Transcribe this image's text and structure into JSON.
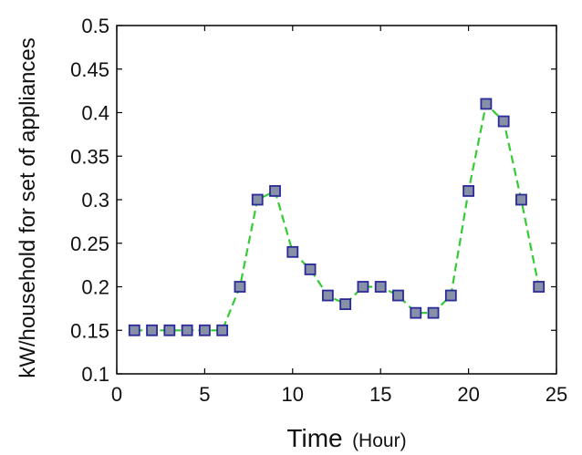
{
  "chart_data": {
    "type": "line",
    "title": "",
    "xlabel": "Time",
    "xlabel_unit": "(Hour)",
    "ylabel": "kW/household for set of appliances",
    "xlim": [
      0,
      25
    ],
    "ylim": [
      0.1,
      0.5
    ],
    "xticks": [
      "0",
      "5",
      "10",
      "15",
      "20",
      "25"
    ],
    "yticks": [
      "0.1",
      "0.15",
      "0.2",
      "0.25",
      "0.3",
      "0.35",
      "0.4",
      "0.45",
      "0.5"
    ],
    "grid": false,
    "series": [
      {
        "line_color": "#33cc33",
        "marker_color": "#8890a8",
        "marker_edge": "#2a2a9a",
        "marker": "square",
        "line_style": "dashed",
        "x": [
          1,
          2,
          3,
          4,
          5,
          6,
          7,
          8,
          9,
          10,
          11,
          12,
          13,
          14,
          15,
          16,
          17,
          18,
          19,
          20,
          21,
          22,
          23,
          24
        ],
        "values": [
          0.15,
          0.15,
          0.15,
          0.15,
          0.15,
          0.15,
          0.2,
          0.3,
          0.31,
          0.24,
          0.22,
          0.19,
          0.18,
          0.2,
          0.2,
          0.19,
          0.17,
          0.17,
          0.19,
          0.31,
          0.41,
          0.39,
          0.3,
          0.2
        ]
      }
    ]
  }
}
